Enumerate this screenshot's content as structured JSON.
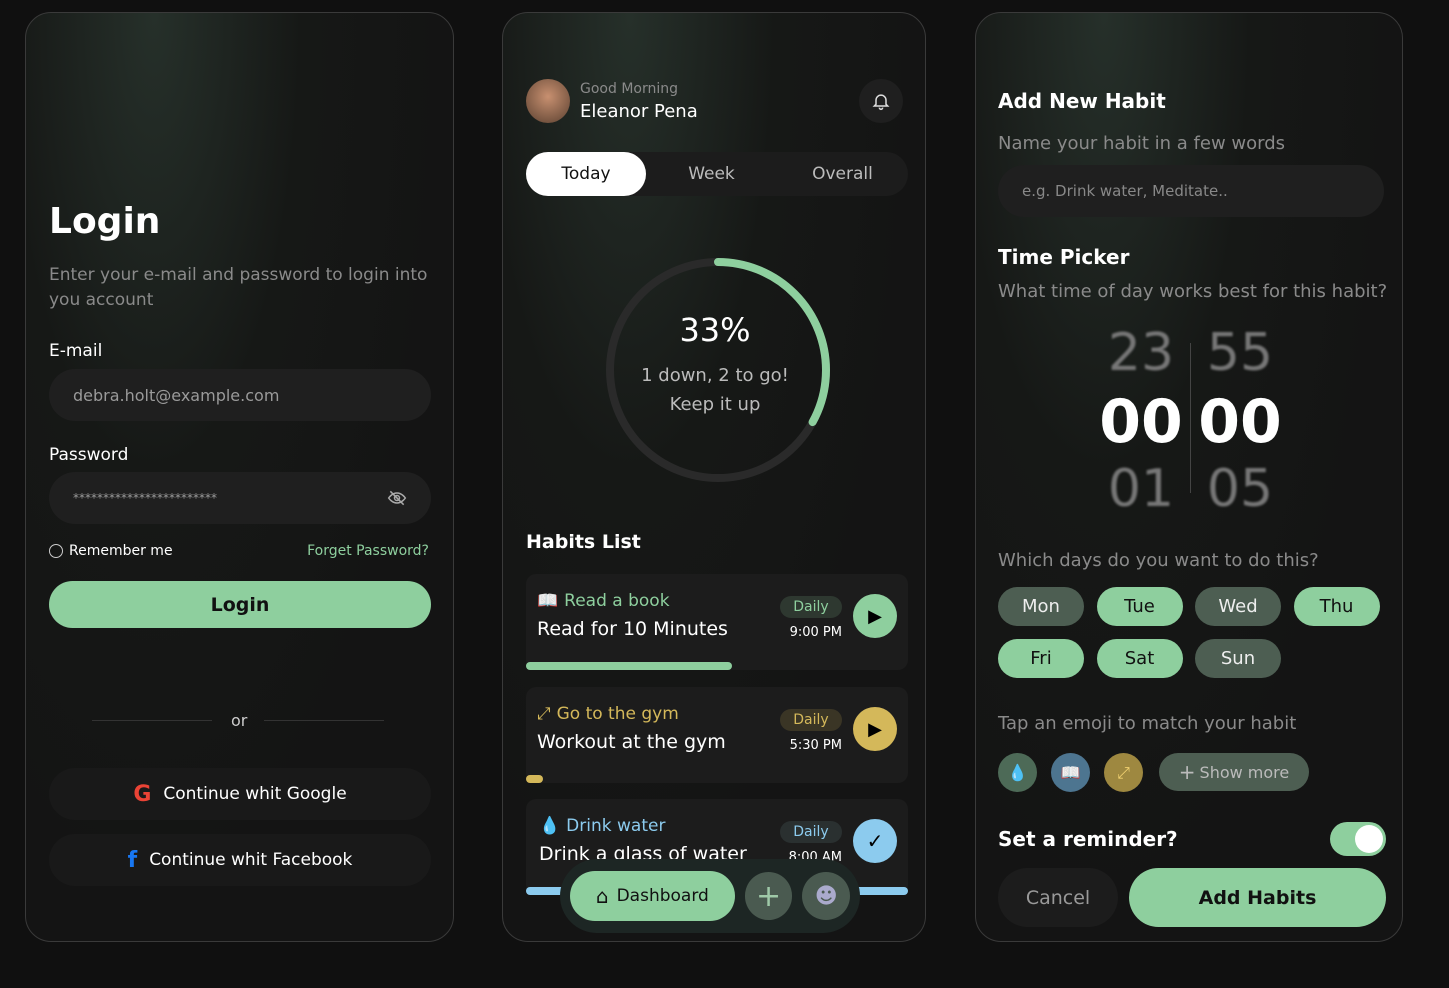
{
  "colors": {
    "accent": "#8ecf9e",
    "gym": "#d4b85a",
    "water": "#8ccbee"
  },
  "login": {
    "title": "Login",
    "subtitle": "Enter your e-mail and password to login into you account",
    "email_label": "E-mail",
    "email_value": "debra.holt@example.com",
    "password_label": "Password",
    "password_value": "************************",
    "remember": "Remember me",
    "remember_checked": false,
    "forgot": "Forget Password?",
    "login_button": "Login",
    "or": "or",
    "google": "Continue whit Google",
    "facebook": "Continue whit Facebook"
  },
  "dashboard": {
    "greeting": "Good Morning",
    "user": "Eleanor Pena",
    "tabs": [
      "Today",
      "Week",
      "Overall"
    ],
    "active_tab": "Today",
    "progress_percent": 33,
    "progress_label": "33%",
    "progress_line1": "1 down, 2 to go!",
    "progress_line2": "Keep it up",
    "habits_title": "Habits List",
    "habits": [
      {
        "icon": "book-icon",
        "category": "Read a book",
        "title": "Read for 10 Minutes",
        "freq": "Daily",
        "time": "9:00 PM",
        "action": "play",
        "progress": 0.54
      },
      {
        "icon": "dumbbell-icon",
        "category": "Go to the gym",
        "title": "Workout at the gym",
        "freq": "Daily",
        "time": "5:30 PM",
        "action": "play",
        "progress": 0.04
      },
      {
        "icon": "water-drop-icon",
        "category": "Drink water",
        "title": "Drink a glass of water",
        "freq": "Daily",
        "time": "8:00 AM",
        "action": "done",
        "progress": 1
      }
    ],
    "nav": {
      "dashboard": "Dashboard"
    }
  },
  "add": {
    "title": "Add New Habit",
    "name_label": "Name your habit in a few words",
    "name_placeholder": "e.g. Drink water, Meditate..",
    "time_title": "Time Picker",
    "time_question": "What time of day works best for this habit?",
    "hours": [
      "23",
      "00",
      "01"
    ],
    "minutes": [
      "55",
      "00",
      "05"
    ],
    "days_question": "Which days do you want to do this?",
    "days": [
      {
        "label": "Mon",
        "on": false
      },
      {
        "label": "Tue",
        "on": true
      },
      {
        "label": "Wed",
        "on": false
      },
      {
        "label": "Thu",
        "on": true
      },
      {
        "label": "Fri",
        "on": true
      },
      {
        "label": "Sat",
        "on": true
      },
      {
        "label": "Sun",
        "on": false
      }
    ],
    "emoji_question": "Tap an emoji to match your habit",
    "show_more": "Show more",
    "reminder": "Set a reminder?",
    "reminder_on": true,
    "cancel": "Cancel",
    "submit": "Add Habits"
  }
}
